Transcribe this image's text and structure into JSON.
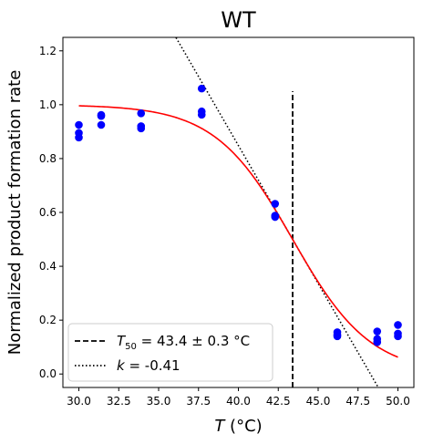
{
  "chart_data": {
    "type": "scatter",
    "title": "WT",
    "xlabel": "T (°C)",
    "ylabel": "Normalized product formation rate",
    "xlim": [
      29.0,
      51.0
    ],
    "ylim": [
      -0.05,
      1.25
    ],
    "xticks": [
      30.0,
      32.5,
      35.0,
      37.5,
      40.0,
      42.5,
      45.0,
      47.5,
      50.0
    ],
    "xtick_labels": [
      "30.0",
      "32.5",
      "35.0",
      "37.5",
      "40.0",
      "42.5",
      "45.0",
      "47.5",
      "50.0"
    ],
    "yticks": [
      0.0,
      0.2,
      0.4,
      0.6,
      0.8,
      1.0,
      1.2
    ],
    "ytick_labels": [
      "0.0",
      "0.2",
      "0.4",
      "0.6",
      "0.8",
      "1.0",
      "1.2"
    ],
    "grid": false,
    "legend_placement": "lower-left",
    "series": [
      {
        "kind": "points",
        "color": "#0000ff",
        "x": [
          30.0,
          30.0,
          30.0,
          31.4,
          31.4,
          31.4,
          33.9,
          33.9,
          33.9,
          37.7,
          37.7,
          37.7,
          42.3,
          42.3,
          42.3,
          46.2,
          46.2,
          46.2,
          48.7,
          48.7,
          48.7,
          50.0,
          50.0,
          50.0
        ],
        "y": [
          0.925,
          0.895,
          0.878,
          0.962,
          0.958,
          0.925,
          0.968,
          0.92,
          0.912,
          1.06,
          0.975,
          0.963,
          0.632,
          0.588,
          0.583,
          0.155,
          0.145,
          0.14,
          0.158,
          0.13,
          0.118,
          0.182,
          0.15,
          0.14
        ]
      },
      {
        "kind": "fit",
        "color": "#ff0000",
        "curve": "logistic",
        "x_start": 30.0,
        "x_end": 50.0
      }
    ],
    "reference_lines": [
      {
        "kind": "vertical",
        "style": "dashed",
        "color": "#000000",
        "x": 43.4,
        "y_from": -0.05,
        "y_to": 1.05
      },
      {
        "kind": "tangent",
        "style": "dotted",
        "color": "#000000",
        "x0": 43.4,
        "y0": 0.5,
        "slope": -0.1025
      }
    ],
    "legend": [
      {
        "style": "dashed",
        "label_parts": [
          "T",
          "50",
          " = 43.4 ± 0.3 °C"
        ]
      },
      {
        "style": "dotted",
        "label_parts": [
          "k",
          " = -0.41"
        ]
      }
    ]
  }
}
